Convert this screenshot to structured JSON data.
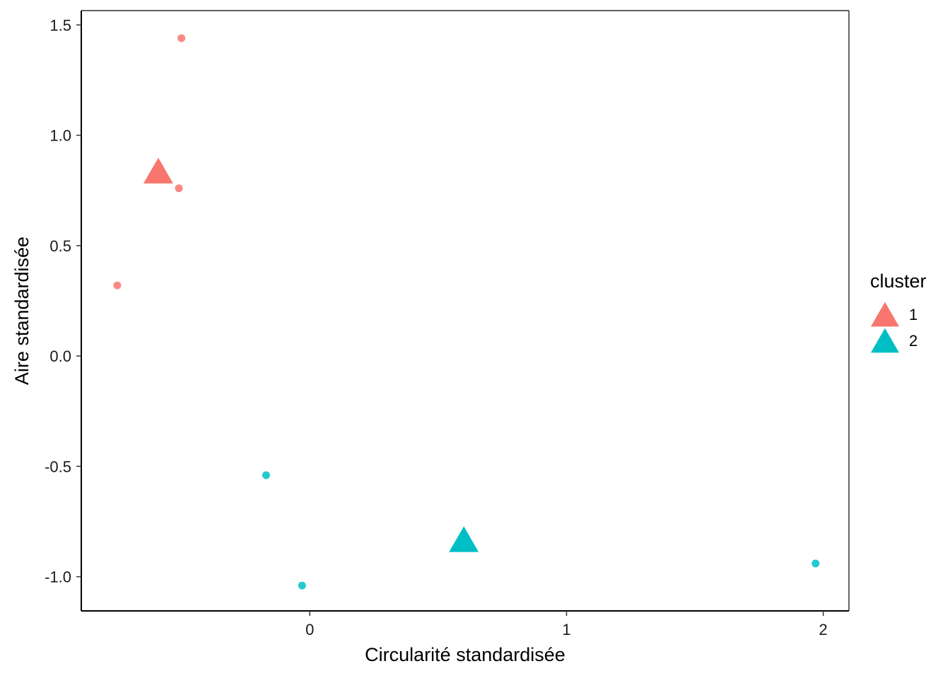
{
  "chart_data": {
    "type": "scatter",
    "xlabel": "Circularité standardisée",
    "ylabel": "Aire standardisée",
    "xlim": [
      -0.89,
      2.1
    ],
    "ylim": [
      -1.155,
      1.565
    ],
    "x_ticks": [
      {
        "value": 0,
        "label": "0"
      },
      {
        "value": 1,
        "label": "1"
      },
      {
        "value": 2,
        "label": "2"
      }
    ],
    "y_ticks": [
      {
        "value": 1.5,
        "label": "1.5"
      },
      {
        "value": 1.0,
        "label": "1.0"
      },
      {
        "value": 0.5,
        "label": "0.5"
      },
      {
        "value": 0.0,
        "label": "0.0"
      },
      {
        "value": -0.5,
        "label": "-0.5"
      },
      {
        "value": -1.0,
        "label": "-1.0"
      }
    ],
    "grid": false,
    "legend": {
      "title": "cluster",
      "position": "right",
      "entries": [
        {
          "label": "1",
          "color": "#F8766D"
        },
        {
          "label": "2",
          "color": "#00BFC4"
        }
      ]
    },
    "series": [
      {
        "cluster": "1",
        "color": "#F8766D",
        "points": [
          {
            "x": -0.5,
            "y": 1.44
          },
          {
            "x": -0.51,
            "y": 0.76
          },
          {
            "x": -0.75,
            "y": 0.32
          }
        ],
        "centroid": {
          "x": -0.59,
          "y": 0.84
        }
      },
      {
        "cluster": "2",
        "color": "#00BFC4",
        "points": [
          {
            "x": -0.17,
            "y": -0.54
          },
          {
            "x": -0.03,
            "y": -1.04
          },
          {
            "x": 1.97,
            "y": -0.94
          }
        ],
        "centroid": {
          "x": 0.6,
          "y": -0.83
        }
      }
    ]
  }
}
